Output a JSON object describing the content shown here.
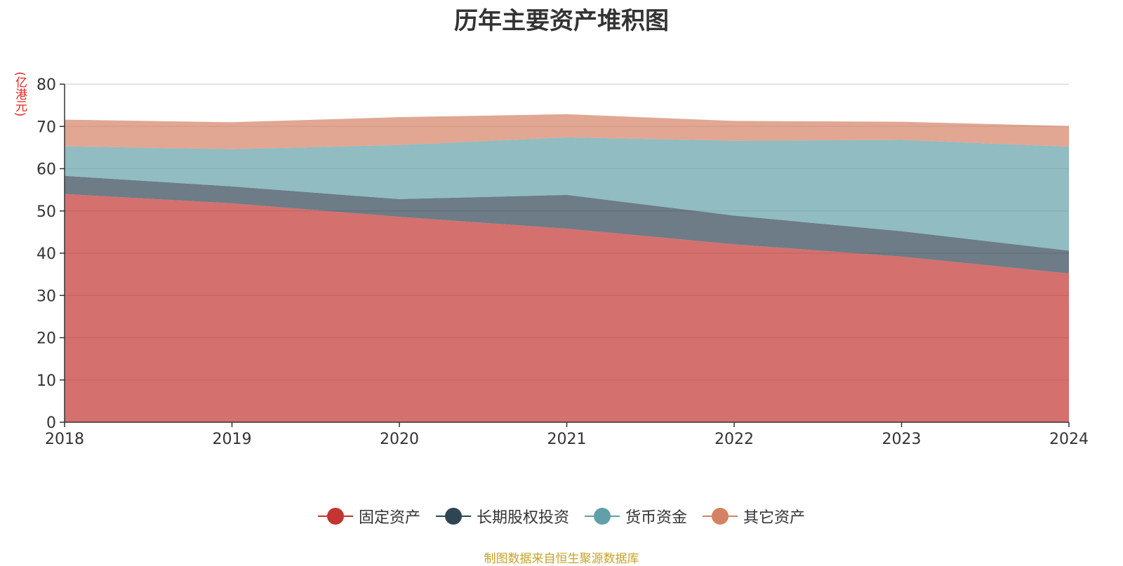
{
  "chart_data": {
    "type": "area",
    "stacked": true,
    "title": "历年主要资产堆积图",
    "ylabel": "(亿港元)",
    "x": [
      "2018",
      "2019",
      "2020",
      "2021",
      "2022",
      "2023",
      "2024"
    ],
    "ylim": [
      0,
      80
    ],
    "yticks": [
      "0",
      "10",
      "20",
      "30",
      "40",
      "50",
      "60",
      "70",
      "80"
    ],
    "grid": true,
    "legend_position": "bottom",
    "series": [
      {
        "name": "固定资产",
        "color": "#c23531",
        "values": [
          54.0,
          51.8,
          48.6,
          45.8,
          42.1,
          39.2,
          35.2
        ]
      },
      {
        "name": "长期股权投资",
        "color": "#2f4554",
        "values": [
          4.3,
          4.0,
          4.2,
          8.0,
          6.8,
          6.0,
          5.4
        ]
      },
      {
        "name": "货币资金",
        "color": "#61a0a8",
        "values": [
          7.0,
          8.8,
          12.8,
          13.6,
          17.7,
          21.6,
          24.6
        ]
      },
      {
        "name": "其它资产",
        "color": "#d48265",
        "values": [
          6.3,
          6.4,
          6.6,
          5.5,
          4.7,
          4.3,
          4.9
        ]
      }
    ],
    "source": "制图数据来自恒生聚源数据库"
  }
}
